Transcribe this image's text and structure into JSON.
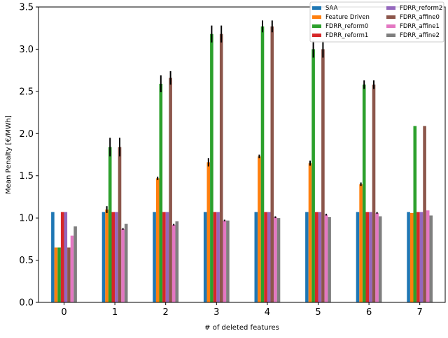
{
  "chart_data": {
    "type": "bar",
    "title": "",
    "xlabel": "# of deleted features",
    "ylabel": "Mean Penalty [€/MWh]",
    "categories": [
      "0",
      "1",
      "2",
      "3",
      "4",
      "5",
      "6",
      "7"
    ],
    "ylim": [
      0,
      3.5
    ],
    "yticks": [
      "0.0",
      "0.5",
      "1.0",
      "1.5",
      "2.0",
      "2.5",
      "3.0",
      "3.5"
    ],
    "grid": false,
    "legend_position": "top-right",
    "legend_columns": 2,
    "series": [
      {
        "name": "SAA",
        "color": "#1f77b4",
        "values": [
          1.07,
          1.07,
          1.07,
          1.07,
          1.07,
          1.07,
          1.07,
          1.07
        ],
        "errors": [
          0,
          0,
          0,
          0,
          0,
          0,
          0,
          0
        ]
      },
      {
        "name": "Feature Driven",
        "color": "#ff7f0e",
        "values": [
          0.65,
          1.1,
          1.47,
          1.66,
          1.73,
          1.65,
          1.4,
          1.06
        ],
        "errors": [
          0,
          0.04,
          0.02,
          0.05,
          0.02,
          0.03,
          0.02,
          0
        ]
      },
      {
        "name": "FDRR_reform0",
        "color": "#2ca02c",
        "values": [
          0.65,
          1.84,
          2.59,
          3.18,
          3.27,
          3.0,
          2.58,
          2.09
        ],
        "errors": [
          0,
          0.11,
          0.1,
          0.1,
          0.07,
          0.1,
          0.05,
          0
        ]
      },
      {
        "name": "FDRR_reform1",
        "color": "#d62728",
        "values": [
          1.07,
          1.07,
          1.07,
          1.07,
          1.07,
          1.07,
          1.07,
          1.07
        ],
        "errors": [
          0,
          0,
          0,
          0,
          0,
          0,
          0,
          0
        ]
      },
      {
        "name": "FDRR_reform2",
        "color": "#9467bd",
        "values": [
          1.07,
          1.07,
          1.07,
          1.07,
          1.07,
          1.07,
          1.07,
          1.07
        ],
        "errors": [
          0,
          0,
          0,
          0,
          0,
          0,
          0,
          0
        ]
      },
      {
        "name": "FDRR_affine0",
        "color": "#8c564b",
        "values": [
          0.65,
          1.84,
          2.66,
          3.18,
          3.27,
          3.0,
          2.58,
          2.09
        ],
        "errors": [
          0,
          0.11,
          0.08,
          0.1,
          0.07,
          0.1,
          0.05,
          0
        ]
      },
      {
        "name": "FDRR_affine1",
        "color": "#e377c2",
        "values": [
          0.79,
          0.87,
          0.92,
          0.97,
          1.01,
          1.04,
          1.06,
          1.09
        ],
        "errors": [
          0,
          0.01,
          0.01,
          0.01,
          0.01,
          0.01,
          0.01,
          0
        ]
      },
      {
        "name": "FDRR_affine2",
        "color": "#7f7f7f",
        "values": [
          0.9,
          0.93,
          0.96,
          0.97,
          1.0,
          1.01,
          1.02,
          1.03
        ],
        "errors": [
          0,
          0,
          0,
          0,
          0,
          0,
          0,
          0
        ]
      }
    ]
  }
}
